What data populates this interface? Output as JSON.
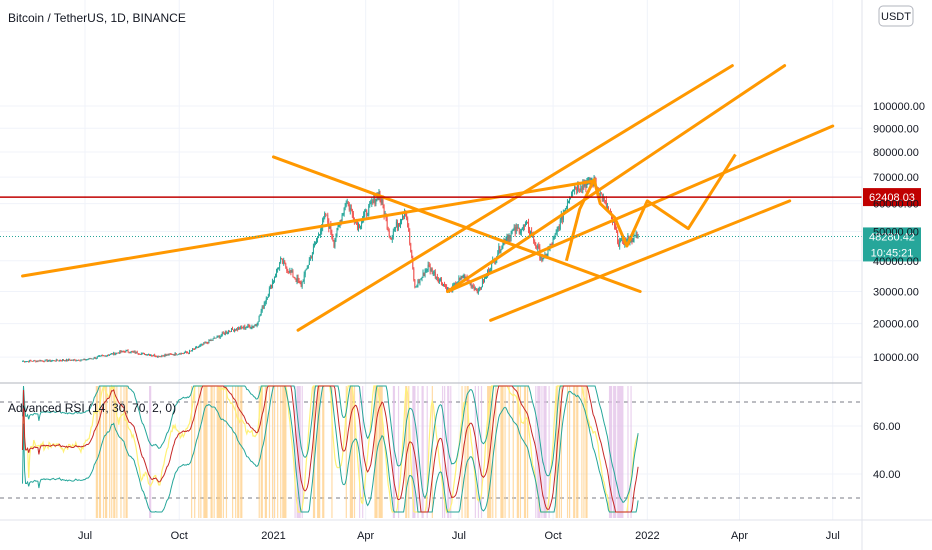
{
  "chart_data": {
    "type": "candlestick",
    "title": "Bitcoin / TetherUS, 1D, BINANCE",
    "currency": "USDT",
    "price_axis": {
      "ticks": [
        100000,
        90000,
        80000,
        70000,
        60000,
        50000,
        40000,
        30000,
        20000,
        10000
      ],
      "tick_labels": [
        "100000.00",
        "90000.00",
        "80000.00",
        "70000.00",
        "60000.00",
        "50000.00",
        "40000.00",
        "30000.00",
        "20000.00",
        "10000.00"
      ]
    },
    "time_axis": {
      "labels": [
        "Jul",
        "Oct",
        "2021",
        "Apr",
        "Jul",
        "Oct",
        "2022",
        "Apr",
        "Jul"
      ],
      "dates": [
        "2020-07-01",
        "2020-10-01",
        "2021-01-01",
        "2021-04-01",
        "2021-07-01",
        "2021-10-01",
        "2022-01-01",
        "2022-04-01",
        "2022-07-01"
      ]
    },
    "price_path": [
      [
        "2020-05-01",
        8800
      ],
      [
        "2020-07-01",
        9200
      ],
      [
        "2020-08-10",
        11800
      ],
      [
        "2020-09-10",
        10300
      ],
      [
        "2020-10-10",
        11400
      ],
      [
        "2020-11-20",
        18000
      ],
      [
        "2020-12-15",
        19500
      ],
      [
        "2021-01-08",
        40000
      ],
      [
        "2021-01-28",
        32000
      ],
      [
        "2021-02-21",
        56000
      ],
      [
        "2021-03-01",
        46000
      ],
      [
        "2021-03-13",
        61000
      ],
      [
        "2021-03-25",
        52000
      ],
      [
        "2021-04-14",
        64000
      ],
      [
        "2021-04-25",
        48000
      ],
      [
        "2021-05-10",
        58000
      ],
      [
        "2021-05-19",
        31000
      ],
      [
        "2021-06-01",
        38000
      ],
      [
        "2021-06-22",
        30000
      ],
      [
        "2021-07-05",
        35000
      ],
      [
        "2021-07-20",
        30000
      ],
      [
        "2021-08-14",
        47000
      ],
      [
        "2021-08-23",
        50000
      ],
      [
        "2021-09-06",
        52000
      ],
      [
        "2021-09-21",
        40000
      ],
      [
        "2021-10-03",
        48000
      ],
      [
        "2021-10-20",
        66000
      ],
      [
        "2021-11-10",
        68500
      ],
      [
        "2021-11-28",
        54000
      ],
      [
        "2021-12-04",
        46000
      ],
      [
        "2021-12-13",
        47000
      ],
      [
        "2021-12-23",
        48280
      ]
    ],
    "horizontal_level": {
      "price": 62408.03,
      "label": "62408.03",
      "color": "#c00000"
    },
    "current_price": {
      "price": 48280.42,
      "label": "48280.42",
      "countdown": "10:45:21",
      "color": "#26a69a"
    },
    "trendlines": [
      {
        "from": [
          "2021-01-25",
          18000
        ],
        "to": [
          "2022-03-25",
          120000
        ]
      },
      {
        "from": [
          "2021-06-20",
          30000
        ],
        "to": [
          "2022-05-15",
          120000
        ]
      },
      {
        "from": [
          "2021-06-20",
          30000
        ],
        "to": [
          "2022-07-01",
          91000
        ]
      },
      {
        "from": [
          "2020-05-01",
          35000
        ],
        "to": [
          "2021-11-10",
          68500
        ]
      },
      {
        "from": [
          "2021-08-01",
          21000
        ],
        "to": [
          "2022-05-20",
          61000
        ]
      },
      {
        "from": [
          "2021-01-01",
          78000
        ],
        "to": [
          "2021-12-25",
          30000
        ]
      }
    ],
    "projection_path": [
      [
        "2021-10-14",
        40000
      ],
      [
        "2021-10-27",
        58000
      ],
      [
        "2021-11-10",
        69000
      ],
      [
        "2021-11-16",
        60000
      ],
      [
        "2021-11-30",
        55000
      ],
      [
        "2021-12-12",
        45000
      ],
      [
        "2022-01-01",
        61000
      ],
      [
        "2022-02-10",
        51000
      ],
      [
        "2022-03-28",
        79000
      ]
    ],
    "indicator": {
      "label": "Advanced RSI (14, 30, 70, 2, 0)",
      "levels": [
        70,
        30
      ],
      "tick_labels": [
        "60.00",
        "40.00"
      ],
      "ticks": [
        60,
        40
      ]
    }
  },
  "colors": {
    "up": "#26a69a",
    "down": "#ef5350",
    "trend": "#ff9800",
    "grid": "#f0f3fa",
    "axis": "#e0e3eb"
  }
}
